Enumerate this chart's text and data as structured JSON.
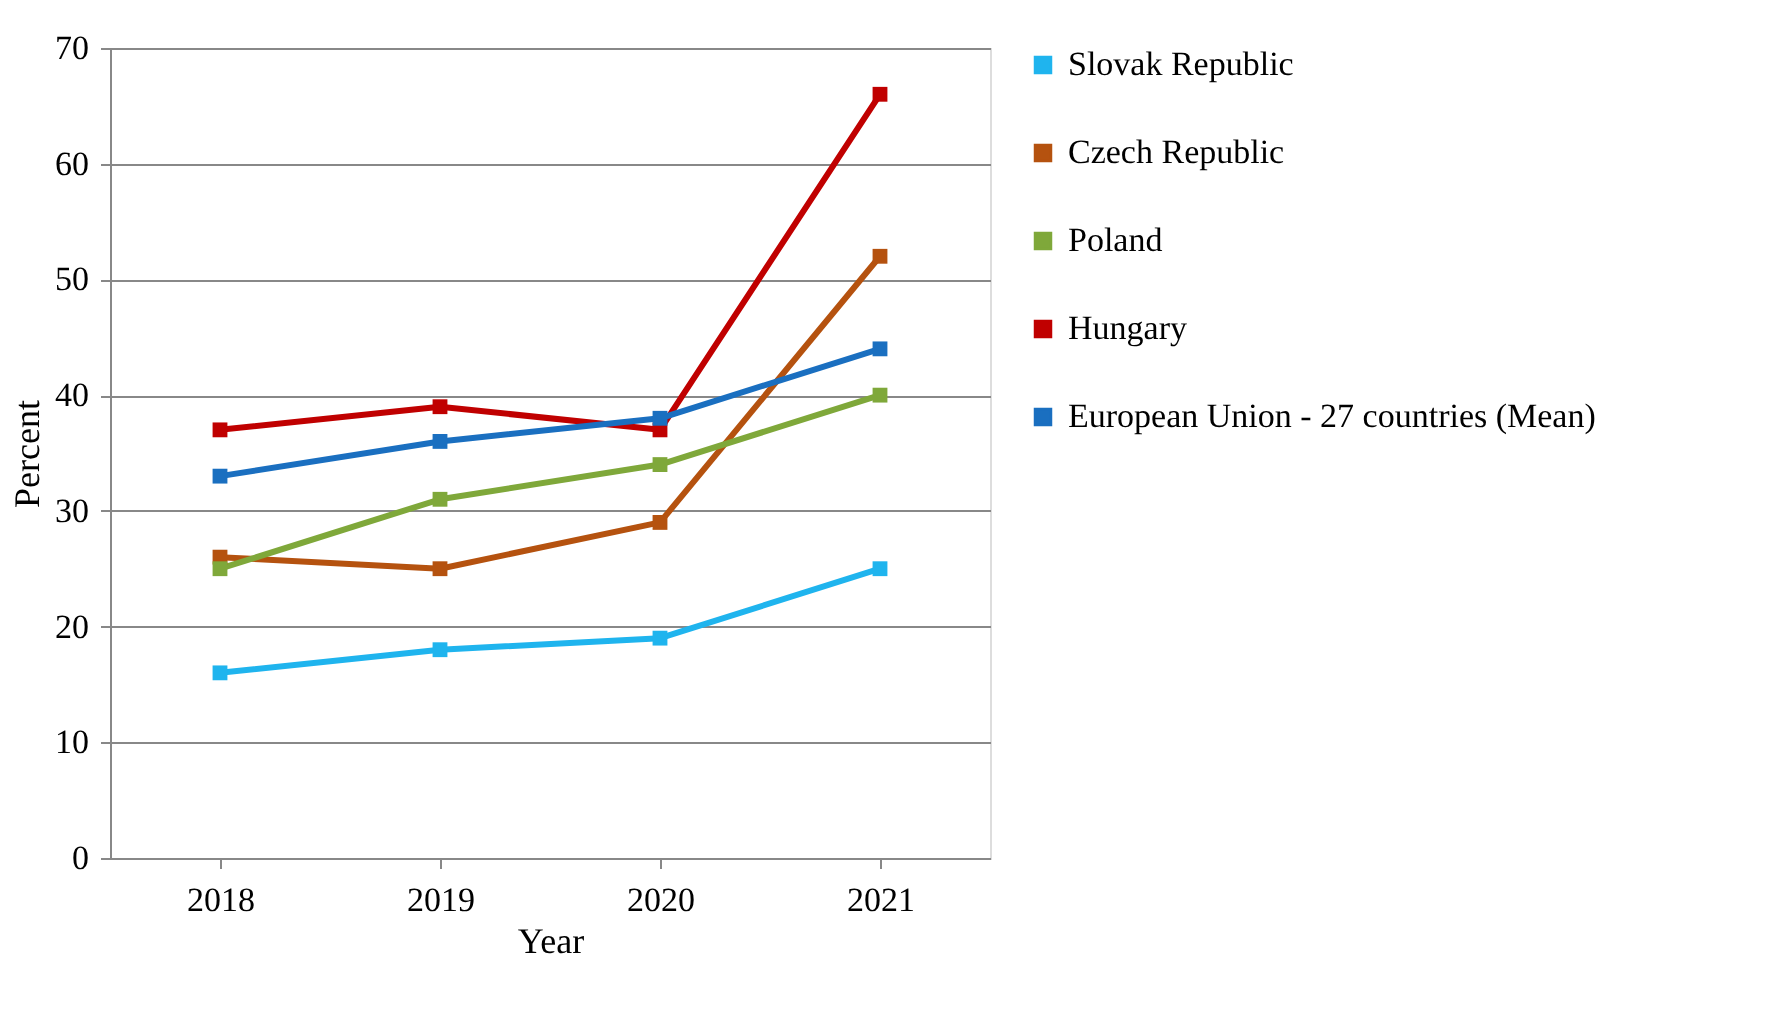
{
  "chart_data": {
    "type": "line",
    "xlabel": "Year",
    "ylabel": "Percent",
    "categories": [
      "2018",
      "2019",
      "2020",
      "2021"
    ],
    "series": [
      {
        "name": "Slovak Republic",
        "color": "#1fb4ee",
        "values": [
          16,
          18,
          19,
          25
        ]
      },
      {
        "name": "Czech Republic",
        "color": "#b5520f",
        "values": [
          26,
          25,
          29,
          52
        ]
      },
      {
        "name": "Poland",
        "color": "#7fa83a",
        "values": [
          25,
          31,
          34,
          40
        ]
      },
      {
        "name": "Hungary",
        "color": "#c00000",
        "values": [
          37,
          39,
          37,
          66
        ]
      },
      {
        "name": "European Union - 27 countries (Mean)",
        "color": "#1a6fc0",
        "values": [
          33,
          36,
          38,
          44
        ]
      }
    ],
    "ylim": [
      0,
      70
    ],
    "yticks": [
      0,
      10,
      20,
      30,
      40,
      50,
      60,
      70
    ],
    "grid": "y",
    "legend": "right",
    "marker": "square",
    "line_style": "solid"
  }
}
